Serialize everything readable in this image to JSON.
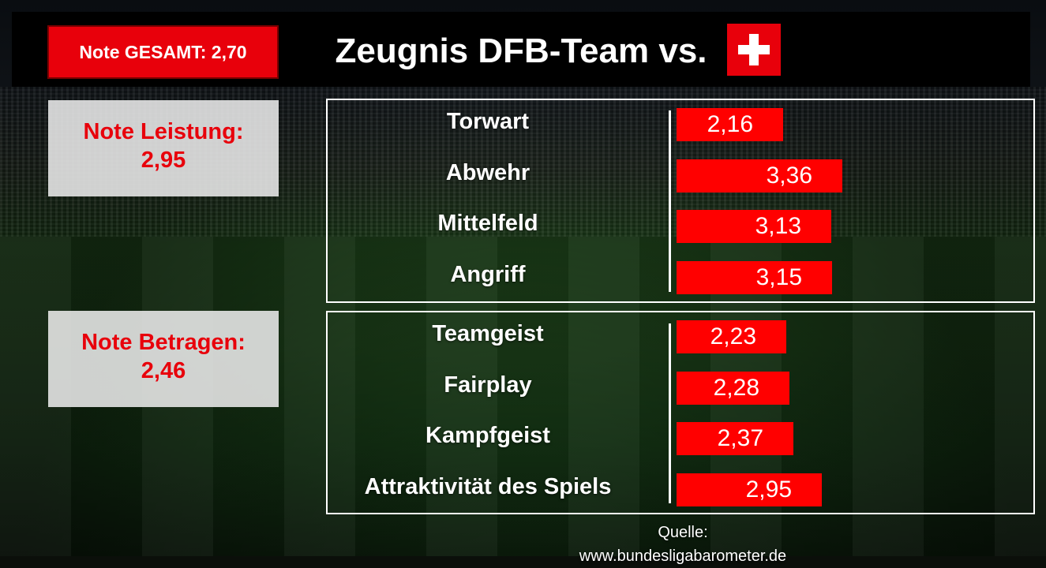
{
  "header": {
    "overall_label": "Note GESAMT: 2,70",
    "title": "Zeugnis DFB-Team vs.",
    "opponent_flag": "swiss-flag",
    "accent_color": "#ff0000"
  },
  "summary": {
    "leistung": {
      "label": "Note Leistung:",
      "value": "2,95"
    },
    "betragen": {
      "label": "Note Betragen:",
      "value": "2,46"
    }
  },
  "chart_data": {
    "type": "bar",
    "orientation": "horizontal",
    "groups": [
      {
        "group": "Leistung",
        "categories": [
          "Torwart",
          "Abwehr",
          "Mittelfeld",
          "Angriff"
        ],
        "values": [
          2.16,
          3.36,
          3.13,
          3.15
        ],
        "labels": [
          "2,16",
          "3,36",
          "3,13",
          "3,15"
        ]
      },
      {
        "group": "Betragen",
        "categories": [
          "Teamgeist",
          "Fairplay",
          "Kampfgeist",
          "Attraktivität des Spiels"
        ],
        "values": [
          2.23,
          2.28,
          2.37,
          2.95
        ],
        "labels": [
          "2,23",
          "2,28",
          "2,37",
          "2,95"
        ]
      }
    ]
  },
  "footer": {
    "source": "Quelle: www.bundesligabarometer.de"
  }
}
